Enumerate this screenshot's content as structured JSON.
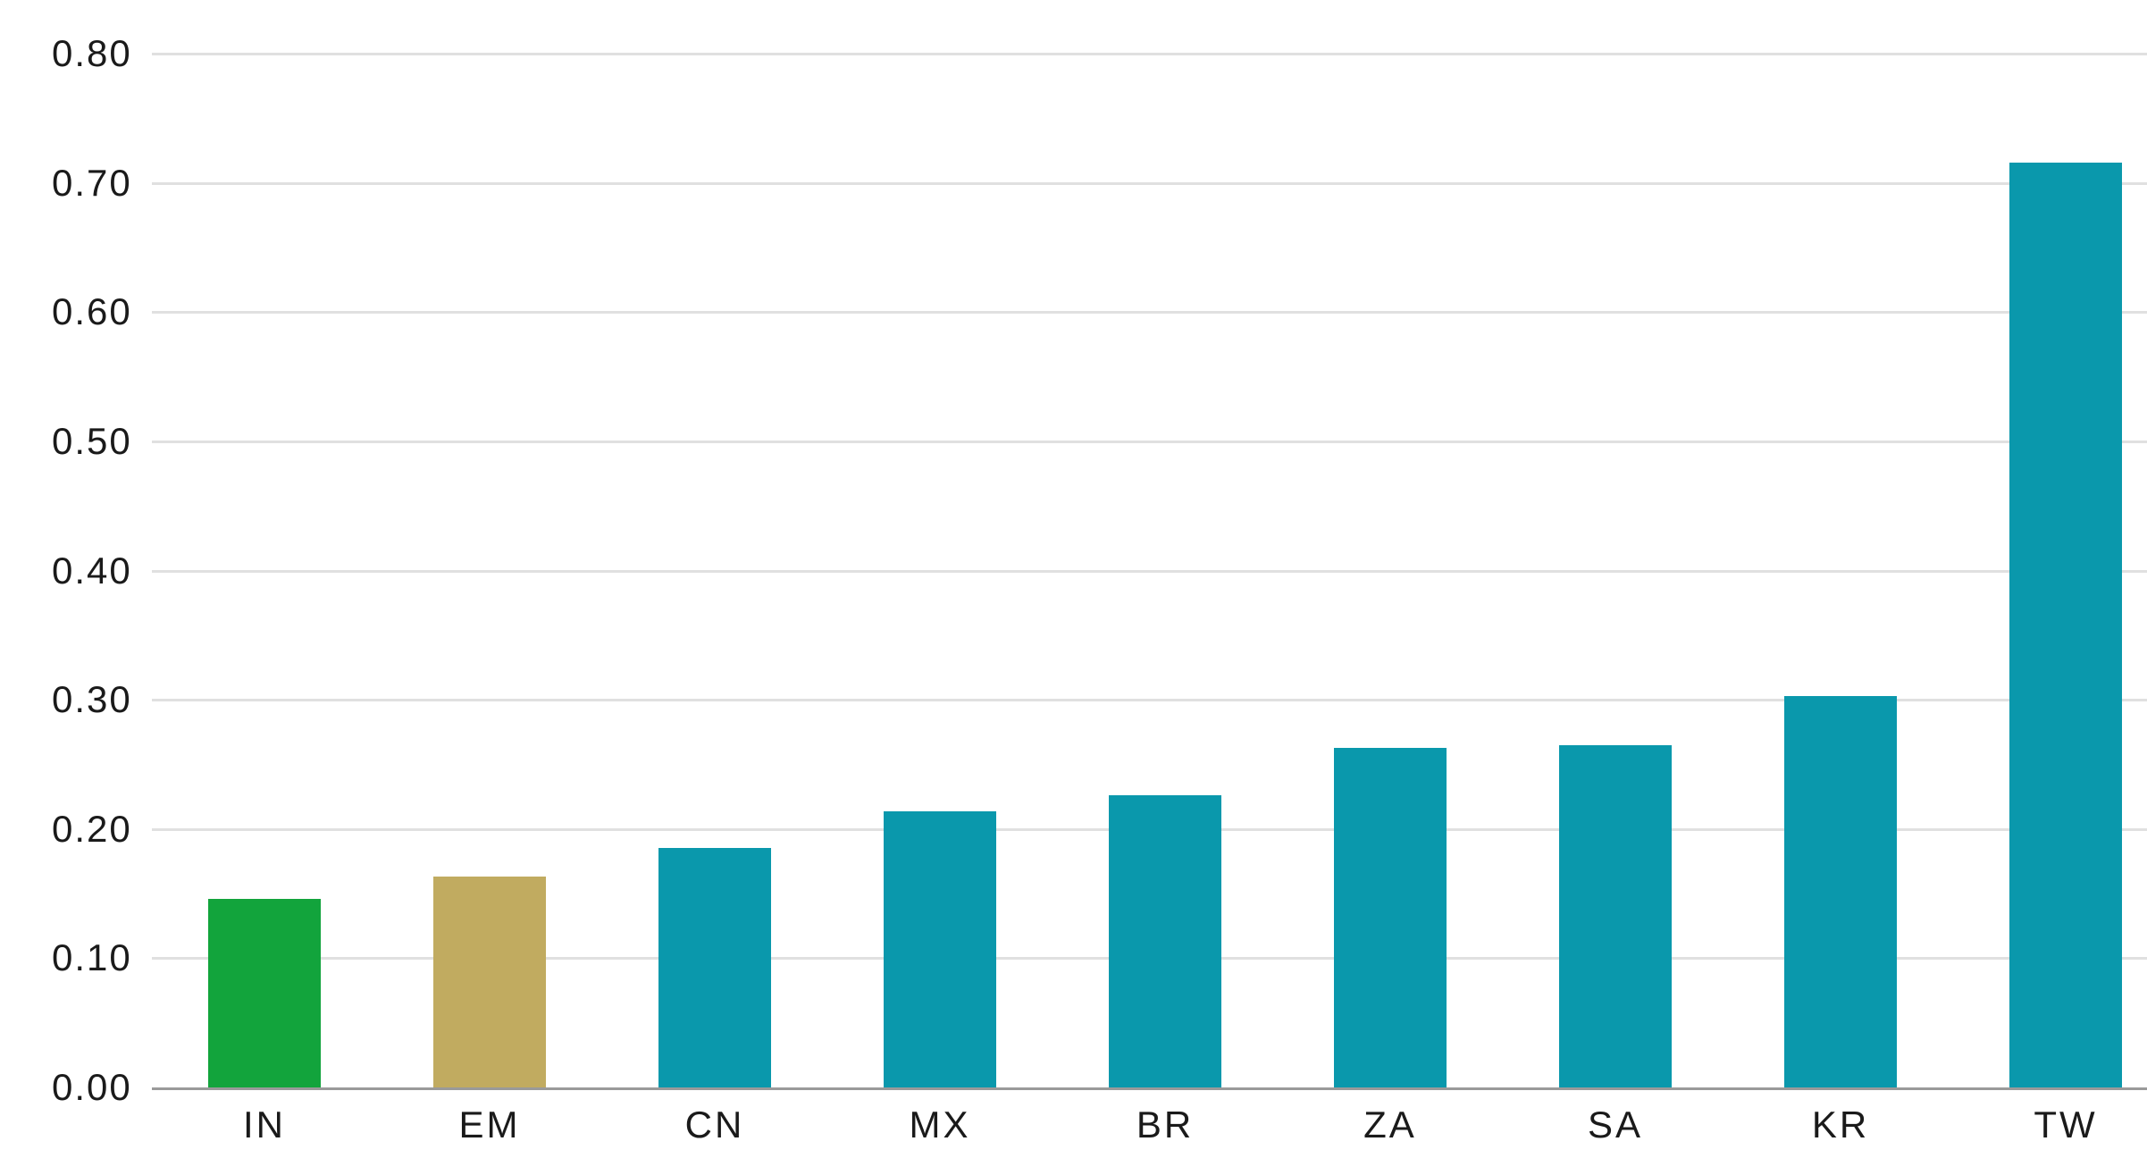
{
  "chart_data": {
    "type": "bar",
    "categories": [
      "IN",
      "EM",
      "CN",
      "MX",
      "BR",
      "ZA",
      "SA",
      "KR",
      "TW"
    ],
    "values": [
      0.146,
      0.163,
      0.185,
      0.214,
      0.226,
      0.263,
      0.265,
      0.303,
      0.716
    ],
    "bar_colors": [
      "#12A43C",
      "#C1AB60",
      "#0A98AC",
      "#0A98AC",
      "#0A98AC",
      "#0A98AC",
      "#0A98AC",
      "#0A98AC",
      "#0A98AC"
    ],
    "title": "",
    "xlabel": "",
    "ylabel": "",
    "ylim": [
      0,
      0.8
    ],
    "yticks": [
      {
        "value": 0.0,
        "label": "0.00"
      },
      {
        "value": 0.1,
        "label": "0.10"
      },
      {
        "value": 0.2,
        "label": "0.20"
      },
      {
        "value": 0.3,
        "label": "0.30"
      },
      {
        "value": 0.4,
        "label": "0.40"
      },
      {
        "value": 0.5,
        "label": "0.50"
      },
      {
        "value": 0.6,
        "label": "0.60"
      },
      {
        "value": 0.7,
        "label": "0.70"
      },
      {
        "value": 0.8,
        "label": "0.80"
      }
    ],
    "grid": "horizontal",
    "legend": "none"
  },
  "style": {
    "background_color": "#FFFFFF",
    "gridline_color": "#E0E0E0",
    "axis_line_color": "#9A9A9A",
    "text_color": "#1A1A1A"
  }
}
